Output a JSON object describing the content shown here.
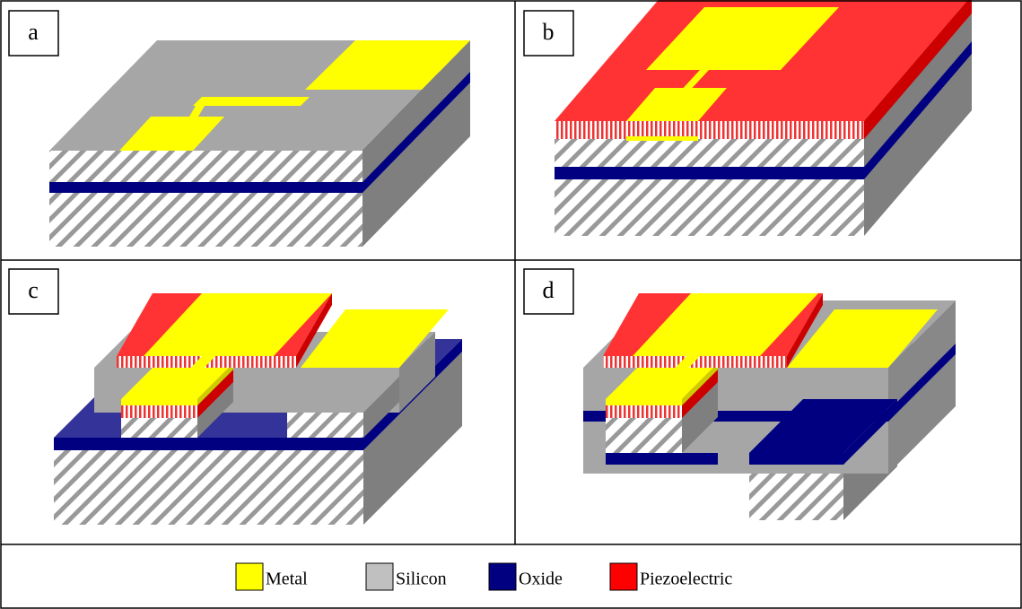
{
  "panels": [
    {
      "label": "a"
    },
    {
      "label": "b"
    },
    {
      "label": "c"
    },
    {
      "label": "d"
    }
  ],
  "legend": [
    {
      "label": "Metal"
    },
    {
      "label": "Silicon"
    },
    {
      "label": "Oxide"
    },
    {
      "label": "Piezoelectric"
    }
  ]
}
